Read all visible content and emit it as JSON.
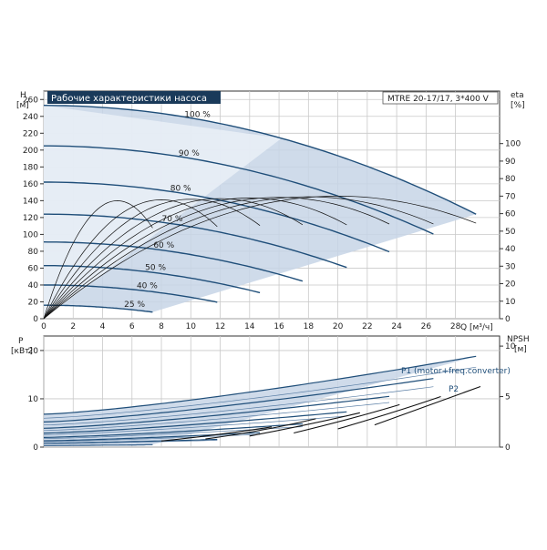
{
  "header": {
    "title": "Рабочие характеристики насоса",
    "model": "MTRE 20-17/17, 3*400 V",
    "title_bg": "#1a3a5a"
  },
  "axes": {
    "h_label": "H",
    "h_unit": "[м]",
    "eta_label": "eta",
    "eta_unit": "[%]",
    "q_label": "Q [м³/ч]",
    "p_label": "P",
    "p_unit": "[кВт]",
    "npsh_label": "NPSH",
    "npsh_unit": "[м]"
  },
  "legend_lower": {
    "p1": "P1 (motor+freq.converter)",
    "p2": "P2"
  },
  "colors": {
    "curve": "#1f4e79",
    "fill": "#c7d5e6",
    "fill_light": "#e8eef6",
    "eta_curve": "#111111"
  },
  "chart_data": [
    {
      "type": "line",
      "name": "H-Q",
      "x_ticks": [
        0,
        2,
        4,
        6,
        8,
        10,
        12,
        14,
        16,
        18,
        20,
        22,
        24,
        26,
        28
      ],
      "y_ticks": [
        0,
        20,
        40,
        60,
        80,
        100,
        120,
        140,
        160,
        180,
        200,
        220,
        240,
        260
      ],
      "eta_ticks": [
        0,
        10,
        20,
        30,
        40,
        50,
        60,
        70,
        80,
        90,
        100
      ],
      "xlim": [
        0,
        31
      ],
      "ylim": [
        0,
        270
      ],
      "eta_lim": [
        0,
        130
      ],
      "speed_labels": [
        "100 %",
        "90 %",
        "80 %",
        "70 %",
        "60 %",
        "50 %",
        "40 %",
        "25 %"
      ],
      "series": [
        {
          "speed": 1.0,
          "H0": 253,
          "Qmax": 29.4
        },
        {
          "speed": 0.9,
          "H0": 205,
          "Qmax": 26.5
        },
        {
          "speed": 0.8,
          "H0": 162,
          "Qmax": 23.5
        },
        {
          "speed": 0.7,
          "H0": 124,
          "Qmax": 20.6
        },
        {
          "speed": 0.6,
          "H0": 91,
          "Qmax": 17.6
        },
        {
          "speed": 0.5,
          "H0": 63,
          "Qmax": 14.7
        },
        {
          "speed": 0.4,
          "H0": 40,
          "Qmax": 11.8
        },
        {
          "speed": 0.25,
          "H0": 16,
          "Qmax": 7.4
        }
      ],
      "eta_peak": 70,
      "eta_peak_Q_at_100": 20
    },
    {
      "type": "line",
      "name": "P-Q",
      "x_ticks": [
        0,
        2,
        4,
        6,
        8,
        10,
        12,
        14,
        16,
        18,
        20,
        22,
        24,
        26,
        28
      ],
      "y_ticks": [
        0,
        10,
        20
      ],
      "npsh_ticks": [
        0,
        5,
        10
      ],
      "xlim": [
        0,
        31
      ],
      "ylim": [
        0,
        23
      ],
      "npsh_lim": [
        0,
        11
      ],
      "p1_at_speed": [
        {
          "speed": 1.0,
          "P0": 6.8,
          "Pmax": 18.8,
          "Qmax": 29.4
        },
        {
          "speed": 0.9,
          "P0": 5.2,
          "Pmax": 14.2,
          "Qmax": 26.5
        },
        {
          "speed": 0.8,
          "P0": 3.9,
          "Pmax": 10.5,
          "Qmax": 23.5
        },
        {
          "speed": 0.7,
          "P0": 2.9,
          "Pmax": 7.3,
          "Qmax": 20.6
        },
        {
          "speed": 0.6,
          "P0": 2.0,
          "Pmax": 4.8,
          "Qmax": 17.6
        },
        {
          "speed": 0.5,
          "P0": 1.3,
          "Pmax": 3.0,
          "Qmax": 14.7
        },
        {
          "speed": 0.4,
          "P0": 0.8,
          "Pmax": 1.6,
          "Qmax": 11.8
        },
        {
          "speed": 0.25,
          "P0": 0.3,
          "Pmax": 0.5,
          "Qmax": 7.4
        }
      ],
      "npsh_curves": [
        {
          "Q": [
            8,
            12,
            15.5
          ],
          "v": [
            0.6,
            1.2,
            2.0
          ]
        },
        {
          "Q": [
            11,
            15,
            18.5
          ],
          "v": [
            0.8,
            1.6,
            2.8
          ]
        },
        {
          "Q": [
            14,
            18,
            21.5
          ],
          "v": [
            1.1,
            2.2,
            3.4
          ]
        },
        {
          "Q": [
            17,
            21,
            24.2
          ],
          "v": [
            1.4,
            2.8,
            4.2
          ]
        },
        {
          "Q": [
            20,
            24,
            27
          ],
          "v": [
            1.8,
            3.5,
            5.0
          ]
        },
        {
          "Q": [
            22.5,
            26.5,
            29.7
          ],
          "v": [
            2.2,
            4.3,
            6.0
          ]
        }
      ]
    }
  ]
}
